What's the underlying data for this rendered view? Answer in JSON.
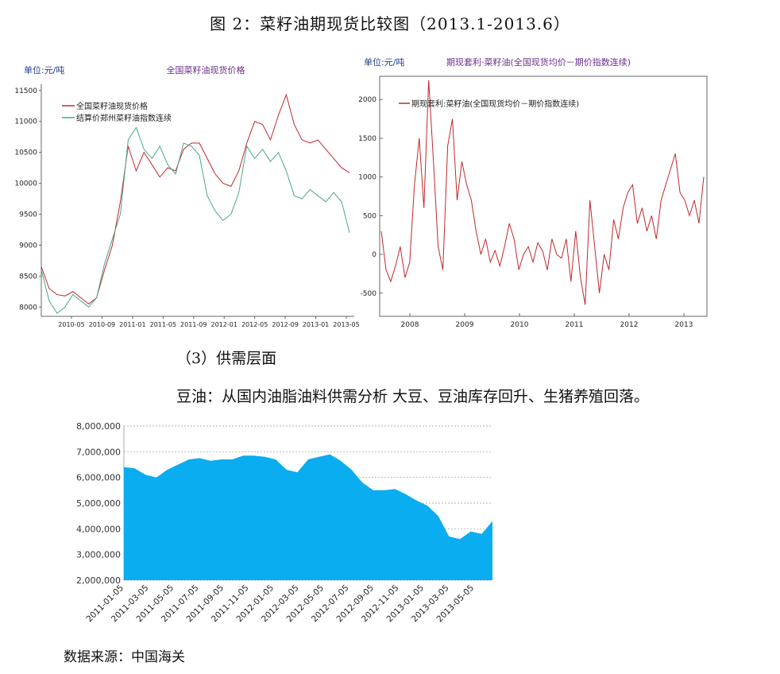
{
  "figure_title": "图 2：菜籽油期现货比较图（2013.1-2013.6）",
  "section_title": "（3）供需层面",
  "body_text": "豆油：从国内油脂油料供需分析 大豆、豆油库存回升、生猪养殖回落。",
  "source": "数据来源：中国海关",
  "colors": {
    "red": "#c0282d",
    "green": "#4aa68a",
    "purple": "#6a2c8a",
    "axis_blue": "#1f3f8f",
    "area": "#0aadef"
  },
  "chart_data": [
    {
      "type": "line",
      "title": "全国菜籽油现货价格",
      "unit_label": "单位:元/吨",
      "yticks": [
        8000,
        8500,
        9000,
        9500,
        10000,
        10500,
        11000,
        11500
      ],
      "ylim": [
        7850,
        11600
      ],
      "xticks": [
        "2010-05",
        "2010-09",
        "2011-01",
        "2011-05",
        "2011-09",
        "2012-01",
        "2012-05",
        "2012-09",
        "2013-01",
        "2013-05"
      ],
      "series": [
        {
          "name": "全国菜籽油现货价格",
          "color": "#c0282d",
          "values": [
            8650,
            8300,
            8200,
            8180,
            8250,
            8150,
            8050,
            8150,
            8600,
            9000,
            9700,
            10600,
            10200,
            10500,
            10300,
            10100,
            10250,
            10200,
            10550,
            10650,
            10650,
            10400,
            10150,
            10000,
            9950,
            10200,
            10650,
            11000,
            10950,
            10700,
            11100,
            11430,
            10950,
            10700,
            10650,
            10700,
            10550,
            10400,
            10250,
            10170
          ]
        },
        {
          "name": "结算价郑州菜籽油指数连续",
          "color": "#4aa68a",
          "values": [
            8600,
            8100,
            7900,
            8000,
            8200,
            8100,
            8000,
            8150,
            8700,
            9100,
            9500,
            10700,
            10900,
            10550,
            10400,
            10600,
            10300,
            10150,
            10650,
            10600,
            10450,
            9800,
            9550,
            9400,
            9500,
            9850,
            10600,
            10400,
            10550,
            10350,
            10500,
            10200,
            9800,
            9750,
            9900,
            9800,
            9700,
            9850,
            9700,
            9200
          ]
        }
      ]
    },
    {
      "type": "line",
      "title": "期现套利·菜籽油(全国现货均价－期价指数连续)",
      "unit_label": "单位:元/吨",
      "yticks": [
        -500,
        0,
        500,
        1000,
        1500,
        2000
      ],
      "ylim": [
        -800,
        2300
      ],
      "xticks": [
        "2008",
        "2009",
        "2010",
        "2011",
        "2012",
        "2013"
      ],
      "series": [
        {
          "name": "期现套利:菜籽油(全国现货均价－期价指数连续)",
          "color": "#c0282d",
          "values": [
            300,
            -200,
            -350,
            -150,
            100,
            -300,
            -100,
            900,
            1500,
            600,
            2250,
            1200,
            100,
            -200,
            1400,
            1750,
            700,
            1200,
            900,
            700,
            300,
            0,
            200,
            -100,
            50,
            -150,
            100,
            400,
            200,
            -200,
            0,
            100,
            -100,
            150,
            50,
            -200,
            200,
            0,
            -50,
            200,
            -350,
            300,
            -300,
            -650,
            700,
            100,
            -500,
            0,
            -200,
            450,
            200,
            600,
            800,
            900,
            400,
            600,
            300,
            500,
            200,
            700,
            900,
            1100,
            1300,
            800,
            700,
            500,
            700,
            400,
            1000
          ]
        }
      ]
    },
    {
      "type": "area",
      "title": "",
      "yticks": [
        "2,000,000",
        "3,000,000",
        "4,000,000",
        "5,000,000",
        "6,000,000",
        "7,000,000",
        "8,000,000"
      ],
      "ylim": [
        2000000,
        8000000
      ],
      "xticks": [
        "2011-01-05",
        "2011-03-05",
        "2011-05-05",
        "2011-07-05",
        "2011-09-05",
        "2011-11-05",
        "2012-01-05",
        "2012-03-05",
        "2012-05-05",
        "2012-07-05",
        "2012-09-05",
        "2012-11-05",
        "2013-01-05",
        "2013-03-05",
        "2013-05-05"
      ],
      "values": [
        6400000,
        6350000,
        6100000,
        6000000,
        6300000,
        6500000,
        6700000,
        6750000,
        6650000,
        6700000,
        6700000,
        6850000,
        6850000,
        6800000,
        6700000,
        6300000,
        6200000,
        6700000,
        6800000,
        6900000,
        6650000,
        6300000,
        5800000,
        5500000,
        5500000,
        5550000,
        5350000,
        5100000,
        4900000,
        4500000,
        3700000,
        3600000,
        3900000,
        3800000,
        4300000
      ]
    }
  ]
}
